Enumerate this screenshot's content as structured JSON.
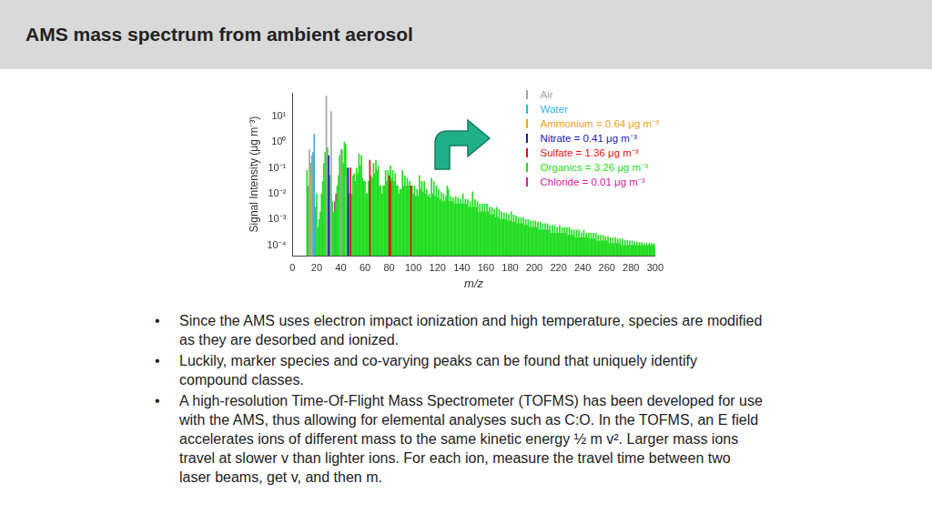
{
  "header": {
    "title": "AMS mass spectrum from ambient aerosol"
  },
  "chart_data": {
    "type": "bar",
    "xlabel": "m/z",
    "ylabel": "Signal Intensity (μg m⁻³)",
    "log": "y",
    "grid": false,
    "legend": "upper right",
    "xlim": [
      0,
      300
    ],
    "xticks": [
      0,
      20,
      40,
      60,
      80,
      100,
      120,
      140,
      160,
      180,
      200,
      220,
      240,
      260,
      280,
      300
    ],
    "ylim": [
      4e-05,
      80
    ],
    "yticks": [
      {
        "value": 0.0001,
        "label": "10⁻⁴"
      },
      {
        "value": 0.001,
        "label": "10⁻³"
      },
      {
        "value": 0.01,
        "label": "10⁻²"
      },
      {
        "value": 0.1,
        "label": "10⁻¹"
      },
      {
        "value": 1,
        "label": "10⁰"
      },
      {
        "value": 10,
        "label": "10¹"
      }
    ],
    "series": [
      {
        "name": "Air",
        "color": "#a6a6a6",
        "x": [
          14,
          16,
          28,
          32,
          40,
          44
        ],
        "values": [
          0.5,
          0.3,
          60,
          15,
          0.5,
          0.05
        ]
      },
      {
        "name": "Water",
        "color": "#33b5e5",
        "x": [
          17,
          18
        ],
        "values": [
          0.4,
          2
        ]
      },
      {
        "name": "Ammonium = 0.64 μg m⁻³",
        "color": "#f0a020",
        "x": [
          15,
          16,
          17
        ],
        "values": [
          0.05,
          0.15,
          0.3
        ]
      },
      {
        "name": "Nitrate = 0.41 μg m⁻³",
        "color": "#1a1aa6",
        "x": [
          30,
          46
        ],
        "values": [
          0.3,
          0.1
        ]
      },
      {
        "name": "Sulfate = 1.36 μg m⁻³",
        "color": "#e01010",
        "x": [
          48,
          64,
          80,
          81,
          98
        ],
        "values": [
          0.1,
          0.2,
          0.05,
          0.03,
          0.02
        ]
      },
      {
        "name": "Organics = 3.26 μg m⁻³",
        "color": "#22dd22",
        "x": [
          12,
          13,
          14,
          15,
          16,
          17,
          18,
          19,
          20,
          21,
          22,
          23,
          24,
          25,
          26,
          27,
          28,
          29,
          30,
          31,
          32,
          33,
          34,
          35,
          36,
          37,
          38,
          39,
          40,
          41,
          42,
          43,
          44,
          45,
          46,
          47,
          48,
          49,
          50,
          51,
          52,
          53,
          54,
          55,
          56,
          57,
          58,
          59,
          60,
          61,
          62,
          63,
          64,
          65,
          66,
          67,
          68,
          69,
          70,
          71,
          72,
          73,
          74,
          75,
          76,
          77,
          78,
          79,
          80,
          81,
          82,
          83,
          84,
          85,
          86,
          87,
          88,
          89,
          90,
          91,
          92,
          93,
          94,
          95,
          96,
          97,
          98,
          99,
          100,
          101,
          102,
          103,
          104,
          105,
          106,
          107,
          108,
          109,
          110,
          111,
          112,
          113,
          114,
          115,
          116,
          117,
          118,
          119,
          120,
          121,
          122,
          123,
          124,
          125,
          126,
          127,
          128,
          129,
          130,
          131,
          132,
          133,
          134,
          135,
          136,
          137,
          138,
          139,
          140,
          141,
          142,
          143,
          144,
          145,
          146,
          147,
          148,
          149,
          150,
          151,
          152,
          153,
          154,
          155,
          156,
          157,
          158,
          159,
          160,
          161,
          162,
          163,
          164,
          165,
          166,
          167,
          168,
          169,
          170,
          171,
          172,
          173,
          174,
          175,
          176,
          177,
          178,
          179,
          180,
          181,
          182,
          183,
          184,
          185,
          186,
          187,
          188,
          189,
          190,
          191,
          192,
          193,
          194,
          195,
          196,
          197,
          198,
          199,
          200,
          201,
          202,
          203,
          204,
          205,
          206,
          207,
          208,
          209,
          210,
          211,
          212,
          213,
          214,
          215,
          216,
          217,
          218,
          219,
          220,
          221,
          222,
          223,
          224,
          225,
          226,
          227,
          228,
          229,
          230,
          231,
          232,
          233,
          234,
          235,
          236,
          237,
          238,
          239,
          240,
          241,
          242,
          243,
          244,
          245,
          246,
          247,
          248,
          249,
          250,
          251,
          252,
          253,
          254,
          255,
          256,
          257,
          258,
          259,
          260,
          261,
          262,
          263,
          264,
          265,
          266,
          267,
          268,
          269,
          270,
          271,
          272,
          273,
          274,
          275,
          276,
          277,
          278,
          279,
          280,
          281,
          282,
          283,
          284,
          285,
          286,
          287,
          288,
          289,
          290,
          291,
          292,
          293,
          294,
          295,
          296,
          297,
          298,
          299,
          300
        ],
        "values": [
          0.08,
          0.02,
          0.01,
          0.15,
          0.02,
          0.01,
          0.1,
          0.003,
          0.01,
          0.0005,
          0.001,
          0.002,
          0.01,
          0.03,
          0.15,
          0.4,
          0.3,
          0.6,
          0.02,
          0.05,
          0.01,
          0.005,
          0.002,
          0.002,
          0.005,
          0.02,
          0.05,
          0.3,
          0.05,
          0.5,
          0.15,
          1.0,
          0.8,
          0.1,
          0.01,
          0.01,
          0.005,
          0.01,
          0.05,
          0.06,
          0.03,
          0.1,
          0.06,
          0.35,
          0.12,
          0.3,
          0.04,
          0.03,
          0.03,
          0.01,
          0.01,
          0.03,
          0.02,
          0.05,
          0.04,
          0.15,
          0.06,
          0.2,
          0.08,
          0.12,
          0.02,
          0.02,
          0.01,
          0.02,
          0.02,
          0.08,
          0.03,
          0.08,
          0.04,
          0.12,
          0.04,
          0.08,
          0.03,
          0.06,
          0.02,
          0.02,
          0.01,
          0.015,
          0.015,
          0.08,
          0.02,
          0.05,
          0.02,
          0.04,
          0.02,
          0.03,
          0.01,
          0.02,
          0.01,
          0.02,
          0.008,
          0.015,
          0.008,
          0.05,
          0.015,
          0.03,
          0.012,
          0.03,
          0.01,
          0.015,
          0.008,
          0.01,
          0.007,
          0.04,
          0.01,
          0.03,
          0.008,
          0.02,
          0.007,
          0.015,
          0.006,
          0.012,
          0.005,
          0.01,
          0.005,
          0.008,
          0.02,
          0.015,
          0.005,
          0.008,
          0.005,
          0.007,
          0.004,
          0.008,
          0.004,
          0.007,
          0.004,
          0.006,
          0.004,
          0.01,
          0.004,
          0.006,
          0.004,
          0.006,
          0.003,
          0.005,
          0.003,
          0.012,
          0.003,
          0.006,
          0.003,
          0.005,
          0.002,
          0.004,
          0.002,
          0.004,
          0.002,
          0.004,
          0.002,
          0.004,
          0.002,
          0.003,
          0.0015,
          0.003,
          0.0015,
          0.0025,
          0.0012,
          0.003,
          0.0012,
          0.0025,
          0.001,
          0.002,
          0.001,
          0.0018,
          0.001,
          0.0018,
          0.0009,
          0.0016,
          0.0009,
          0.002,
          0.0008,
          0.0015,
          0.0008,
          0.0014,
          0.0007,
          0.0012,
          0.0007,
          0.0012,
          0.0007,
          0.0012,
          0.0006,
          0.001,
          0.0006,
          0.001,
          0.0005,
          0.0009,
          0.0005,
          0.0009,
          0.0005,
          0.0009,
          0.0005,
          0.0008,
          0.0004,
          0.0008,
          0.0004,
          0.0007,
          0.0004,
          0.0007,
          0.0004,
          0.0007,
          0.0004,
          0.0006,
          0.0003,
          0.0006,
          0.0003,
          0.0006,
          0.0003,
          0.0005,
          0.0003,
          0.0006,
          0.0003,
          0.0005,
          0.0003,
          0.0005,
          0.0003,
          0.0005,
          0.00025,
          0.0005,
          0.00025,
          0.0004,
          0.00025,
          0.0004,
          0.0002,
          0.0004,
          0.0002,
          0.0004,
          0.0002,
          0.0003,
          0.0002,
          0.0004,
          0.0002,
          0.0003,
          0.0002,
          0.0003,
          0.00018,
          0.0003,
          0.00018,
          0.0003,
          0.00018,
          0.0003,
          0.00015,
          0.00025,
          0.00015,
          0.00025,
          0.00015,
          0.00025,
          0.00015,
          0.00022,
          0.00015,
          0.00022,
          0.00012,
          0.0002,
          0.00012,
          0.0002,
          0.00012,
          0.0002,
          0.00012,
          0.00018,
          0.00012,
          0.00018,
          0.0001,
          0.00018,
          0.0001,
          0.00016,
          0.0001,
          0.00016,
          0.0001,
          0.00015,
          0.0001,
          0.00015,
          0.0001,
          0.00014,
          0.0001,
          0.00014,
          0.0001,
          0.00013,
          0.0001,
          0.00013,
          0.0001,
          0.00012,
          0.0001,
          0.00012,
          0.0001,
          0.00012,
          0.0001,
          0.00012,
          0.0001,
          0.00012,
          0.0001
        ]
      },
      {
        "name": "Chloride = 0.01 μg m⁻³",
        "color": "#d020a0",
        "x": [
          35,
          36
        ],
        "values": [
          0.005,
          0.01
        ]
      }
    ]
  },
  "bullets": [
    "Since the AMS uses electron impact ionization and high temperature, species are modified as they are desorbed and ionized.",
    "Luckily, marker species and co-varying peaks can be found that uniquely identify compound classes.",
    "A high-resolution Time-Of-Flight Mass Spectrometer (TOFMS) has been developed for use with the AMS, thus allowing for elemental analyses such as C:O.  In the TOFMS, an E field accelerates ions of different mass to the same kinetic energy ½ m v². Larger mass ions travel at slower v than lighter ions. For each ion, measure the travel time between two laser beams, get v,  and then m."
  ]
}
